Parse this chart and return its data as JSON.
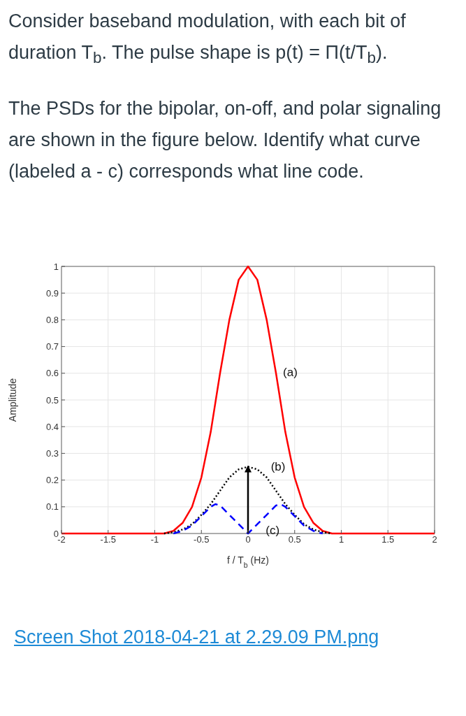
{
  "chart_data": {
    "type": "line",
    "title": "Consider baseband modulation, with each bit of duration T$_{b}$. The pulse shape is p(t) = Π(t/T$_{b}$).",
    "subtitle": "The PSDs for the bipolar, on-off, and polar signaling are shown in the figure below. Identify what curve (labeled a - c) corresponds what line code.",
    "xlabel": "f / T$_{b}$ (Hz)",
    "ylabel": "Amplitude",
    "xlim": [
      -2,
      2
    ],
    "xticks": [
      -2,
      -1.5,
      -1,
      -0.5,
      0,
      0.5,
      1,
      1.5,
      2
    ],
    "ylim": [
      0,
      1
    ],
    "yticks": [
      0,
      0.1,
      0.2,
      0.3,
      0.4,
      0.5,
      0.6,
      0.7,
      0.8,
      0.9,
      1
    ],
    "grid": true,
    "marker": "none",
    "series": [
      {
        "name": "(a)",
        "color": "#ff0000",
        "line_style": "solid",
        "x": [
          -2,
          -1.5,
          -1,
          -0.9,
          -0.8,
          -0.7,
          -0.6,
          -0.5,
          -0.4,
          -0.3,
          -0.2,
          -0.1,
          0,
          0.1,
          0.2,
          0.3,
          0.4,
          0.5,
          0.6,
          0.7,
          0.8,
          0.9,
          1,
          1.5,
          2
        ],
        "values": [
          0,
          0,
          0,
          0,
          0.01,
          0.04,
          0.1,
          0.21,
          0.38,
          0.6,
          0.8,
          0.95,
          1,
          0.95,
          0.8,
          0.6,
          0.38,
          0.21,
          0.1,
          0.04,
          0.01,
          0,
          0,
          0,
          0
        ]
      },
      {
        "name": "(b)",
        "color": "#000000",
        "line_style": "dotted",
        "x": [
          -0.9,
          -0.8,
          -0.7,
          -0.6,
          -0.5,
          -0.4,
          -0.3,
          -0.2,
          -0.1,
          0,
          0.1,
          0.2,
          0.3,
          0.4,
          0.5,
          0.6,
          0.7,
          0.8,
          0.9
        ],
        "values": [
          0,
          0.005,
          0.015,
          0.035,
          0.07,
          0.11,
          0.16,
          0.21,
          0.24,
          0.25,
          0.24,
          0.21,
          0.16,
          0.11,
          0.07,
          0.035,
          0.015,
          0.005,
          0
        ]
      },
      {
        "name": "(c)",
        "color": "#0000ff",
        "line_style": "dashed",
        "x": [
          -0.8,
          -0.7,
          -0.6,
          -0.5,
          -0.4,
          -0.35,
          -0.3,
          -0.2,
          -0.1,
          0,
          0.1,
          0.2,
          0.3,
          0.35,
          0.4,
          0.5,
          0.6,
          0.7,
          0.8
        ],
        "values": [
          0,
          0.01,
          0.03,
          0.065,
          0.1,
          0.11,
          0.105,
          0.07,
          0.035,
          0,
          0.035,
          0.07,
          0.105,
          0.11,
          0.1,
          0.065,
          0.03,
          0.01,
          0
        ]
      },
      {
        "color": "#000000",
        "line_style": "solid",
        "x": [
          0,
          0
        ],
        "values": [
          0,
          0.25
        ]
      }
    ],
    "annotations": [
      "Screen Shot 2018-04-21 at 2.29.09 PM.png"
    ]
  }
}
